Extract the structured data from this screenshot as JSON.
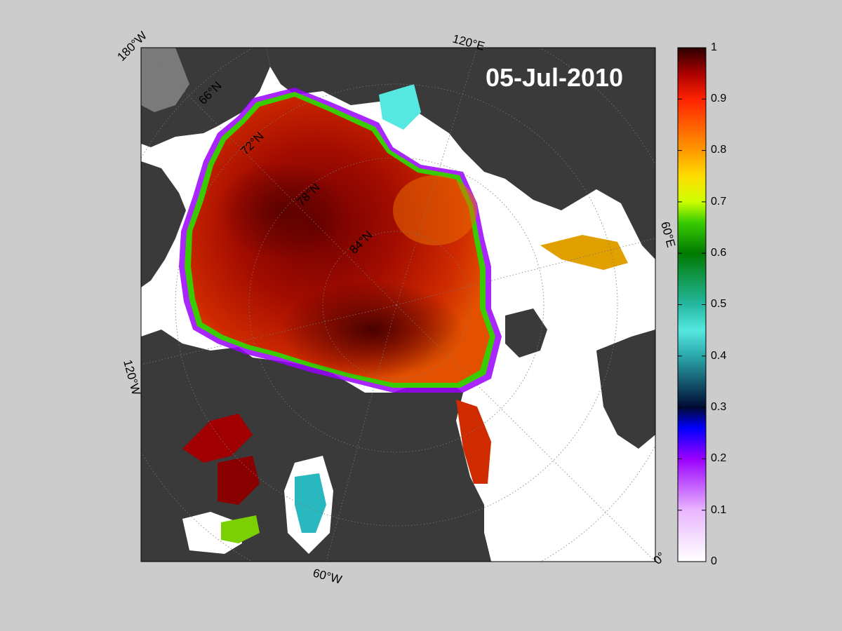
{
  "date_label": "05-Jul-2010",
  "lon_labels": [
    "180°W",
    "120°E",
    "60°E",
    "0°",
    "60°W",
    "120°W"
  ],
  "lat_labels": [
    "66°N",
    "72°N",
    "78°N",
    "84°N"
  ],
  "colorbar": {
    "ticks": [
      "1",
      "0.9",
      "0.8",
      "0.7",
      "0.6",
      "0.5",
      "0.4",
      "0.3",
      "0.2",
      "0.1",
      "0"
    ],
    "range": [
      0,
      1
    ]
  },
  "colors": {
    "background": "#cccccc",
    "land": "#3a3a3a",
    "open_water": "#ffffff",
    "ice_high": "#7a0000",
    "ice_mid": "#d63a00"
  }
}
